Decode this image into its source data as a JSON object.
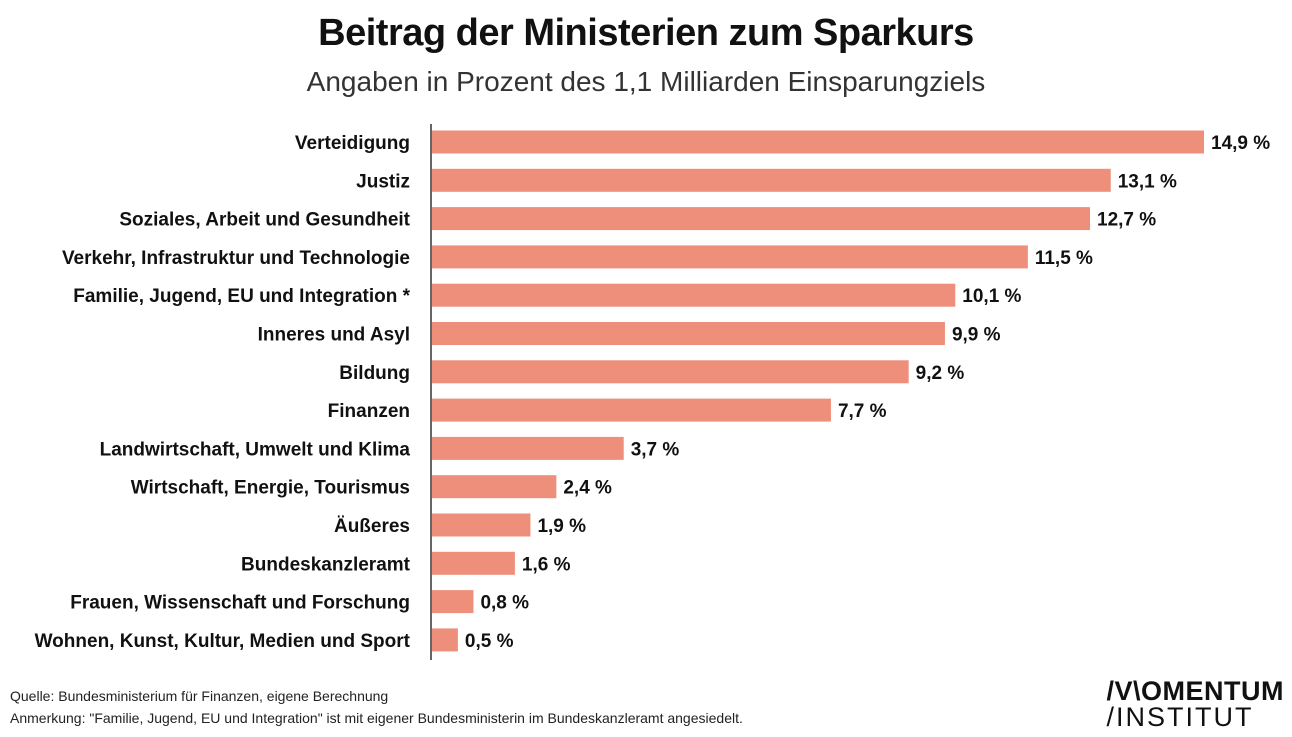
{
  "title": "Beitrag der Ministerien zum Sparkurs",
  "subtitle": "Angaben in Prozent des 1,1 Milliarden Einsparungziels",
  "colors": {
    "bar": "#ee8f7b",
    "axis": "#333333"
  },
  "chart_data": {
    "type": "bar",
    "orientation": "horizontal",
    "categories": [
      "Verteidigung",
      "Justiz",
      "Soziales, Arbeit und Gesundheit",
      "Verkehr, Infrastruktur und Technologie",
      "Familie, Jugend, EU und Integration *",
      "Inneres und Asyl",
      "Bildung",
      "Finanzen",
      "Landwirtschaft, Umwelt und Klima",
      "Wirtschaft, Energie, Tourismus",
      "Äußeres",
      "Bundeskanzleramt",
      "Frauen, Wissenschaft und Forschung",
      "Wohnen, Kunst, Kultur, Medien und Sport"
    ],
    "values": [
      14.9,
      13.1,
      12.7,
      11.5,
      10.1,
      9.9,
      9.2,
      7.7,
      3.7,
      2.4,
      1.9,
      1.6,
      0.8,
      0.5
    ],
    "labels": [
      "14,9 %",
      "13,1 %",
      "12,7 %",
      "11,5 %",
      "10,1 %",
      "9,9 %",
      "9,2 %",
      "7,7 %",
      "3,7 %",
      "2,4 %",
      "1,9 %",
      "1,6 %",
      "0,8 %",
      "0,5 %"
    ],
    "unit": "%",
    "xlim": [
      0,
      14.9
    ],
    "xlabel": "",
    "ylabel": "",
    "grid": false
  },
  "footer": {
    "source": "Quelle: Bundesministerium für Finanzen, eigene Berechnung",
    "note": "Anmerkung: \"Familie, Jugend, EU und Integration\" ist mit eigener Bundesministerin im Bundeskanzleramt angesiedelt."
  },
  "logo": {
    "line1": "/V\\OMENTUM",
    "line2": "/INSTITUT"
  }
}
